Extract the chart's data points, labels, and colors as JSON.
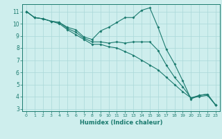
{
  "xlabel": "Humidex (Indice chaleur)",
  "ylabel": "",
  "background_color": "#ceeeed",
  "grid_color": "#aad8d8",
  "line_color": "#1a7a6e",
  "xlim": [
    -0.5,
    23.5
  ],
  "ylim": [
    2.8,
    11.6
  ],
  "xticks": [
    0,
    1,
    2,
    3,
    4,
    5,
    6,
    7,
    8,
    9,
    10,
    11,
    12,
    13,
    14,
    15,
    16,
    17,
    18,
    19,
    20,
    21,
    22,
    23
  ],
  "yticks": [
    3,
    4,
    5,
    6,
    7,
    8,
    9,
    10,
    11
  ],
  "series": [
    [
      11.0,
      10.5,
      10.4,
      10.2,
      10.1,
      9.7,
      9.5,
      8.9,
      8.7,
      9.4,
      9.7,
      10.1,
      10.5,
      10.5,
      11.1,
      11.3,
      9.7,
      7.9,
      6.7,
      5.3,
      3.8,
      4.1,
      4.2,
      3.3
    ],
    [
      11.0,
      10.5,
      10.4,
      10.2,
      10.1,
      9.6,
      9.3,
      8.8,
      8.5,
      8.5,
      8.4,
      8.5,
      8.4,
      8.5,
      8.5,
      8.5,
      7.8,
      6.6,
      5.6,
      4.8,
      3.9,
      4.1,
      4.2,
      3.3
    ],
    [
      11.0,
      10.5,
      10.4,
      10.2,
      10.0,
      9.5,
      9.1,
      8.7,
      8.3,
      8.3,
      8.1,
      8.0,
      7.7,
      7.4,
      7.0,
      6.6,
      6.2,
      5.6,
      5.0,
      4.4,
      3.9,
      4.0,
      4.1,
      3.3
    ]
  ]
}
